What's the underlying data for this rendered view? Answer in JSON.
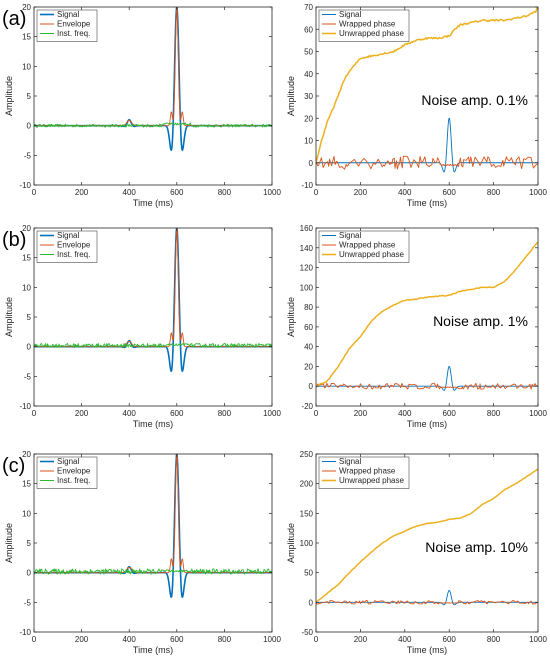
{
  "colors": {
    "signal": "#0072BD",
    "envelope": "#D95319",
    "inst_freq": "#2DB82D",
    "wrapped": "#D95319",
    "unwrapped": "#EDB120",
    "axis": "#262626"
  },
  "chart_data": [
    {
      "id": "a-left",
      "panel_label": "(a)",
      "type": "line",
      "xlabel": "Time (ms)",
      "ylabel": "Amplitude",
      "xlim": [
        0,
        1000
      ],
      "ylim": [
        -10,
        20
      ],
      "xticks": [
        "0",
        "200",
        "400",
        "600",
        "800",
        "1000"
      ],
      "yticks": [
        "-10",
        "-5",
        "0",
        "5",
        "10",
        "15",
        "20"
      ],
      "legend": [
        "Signal",
        "Envelope",
        "Inst. freq."
      ],
      "legend_position": "top-left",
      "series": [
        {
          "name": "Signal",
          "kind": "wavelet",
          "peak_x": 600,
          "peak_y": 20,
          "min_y": -8,
          "small_peak_x": 400,
          "small_peak_y": 1
        },
        {
          "name": "Envelope",
          "kind": "envelope",
          "peak_x": 600,
          "peak_y": 20,
          "side_peaks_y": 2.3
        },
        {
          "name": "Inst. freq.",
          "kind": "noise",
          "baseline_y": 0,
          "spread": 0.5
        }
      ]
    },
    {
      "id": "a-right",
      "type": "line",
      "xlabel": "Time (ms)",
      "ylabel": "Amplitude",
      "xlim": [
        0,
        1000
      ],
      "ylim": [
        -10,
        70
      ],
      "xticks": [
        "0",
        "200",
        "400",
        "600",
        "800",
        "1000"
      ],
      "yticks": [
        "-10",
        "0",
        "10",
        "20",
        "30",
        "40",
        "50",
        "60",
        "70"
      ],
      "legend": [
        "Signal",
        "Wrapped phase",
        "Unwrapped phase"
      ],
      "legend_position": "top-left",
      "annotation": "Noise amp. 0.1%",
      "series": [
        {
          "name": "Signal",
          "kind": "wavelet",
          "peak_x": 600,
          "peak_y": 20,
          "min_y": -8
        },
        {
          "name": "Wrapped phase",
          "kind": "wrapped",
          "amplitude": 3.14
        },
        {
          "name": "Unwrapped phase",
          "kind": "unwrapped",
          "x": [
            0,
            25,
            50,
            75,
            100,
            125,
            150,
            175,
            200,
            250,
            300,
            350,
            400,
            450,
            500,
            550,
            600,
            625,
            650,
            700,
            750,
            800,
            850,
            900,
            950,
            990,
            1000
          ],
          "y": [
            0,
            10,
            18,
            24,
            30,
            37,
            41,
            44,
            47,
            48,
            49,
            50,
            53,
            55,
            56,
            56,
            57,
            60,
            62,
            63,
            64,
            64,
            64,
            65,
            66,
            68,
            70
          ]
        }
      ]
    },
    {
      "id": "b-left",
      "panel_label": "(b)",
      "type": "line",
      "xlabel": "Time (ms)",
      "ylabel": "Amplitude",
      "xlim": [
        0,
        1000
      ],
      "ylim": [
        -10,
        20
      ],
      "xticks": [
        "0",
        "200",
        "400",
        "600",
        "800",
        "1000"
      ],
      "yticks": [
        "-10",
        "-5",
        "0",
        "5",
        "10",
        "15",
        "20"
      ],
      "legend": [
        "Signal",
        "Envelope",
        "Inst. freq."
      ],
      "legend_position": "top-left",
      "series": [
        {
          "name": "Signal",
          "kind": "wavelet",
          "peak_x": 600,
          "peak_y": 20,
          "min_y": -8,
          "small_peak_x": 400,
          "small_peak_y": 1
        },
        {
          "name": "Envelope",
          "kind": "envelope",
          "peak_x": 600,
          "peak_y": 20,
          "side_peaks_y": 2.3
        },
        {
          "name": "Inst. freq.",
          "kind": "noise",
          "baseline_y": 0.2,
          "spread": 0.7
        }
      ]
    },
    {
      "id": "b-right",
      "type": "line",
      "xlabel": "Time (ms)",
      "ylabel": "Amplitude",
      "xlim": [
        0,
        1000
      ],
      "ylim": [
        -20,
        160
      ],
      "xticks": [
        "0",
        "200",
        "400",
        "600",
        "800",
        "1000"
      ],
      "yticks": [
        "-20",
        "0",
        "20",
        "40",
        "60",
        "80",
        "100",
        "120",
        "140",
        "160"
      ],
      "legend": [
        "Signal",
        "Wrapped phase",
        "Unwrapped phase"
      ],
      "legend_position": "top-left",
      "annotation": "Noise amp. 1%",
      "series": [
        {
          "name": "Signal",
          "kind": "wavelet",
          "peak_x": 600,
          "peak_y": 20,
          "min_y": -8
        },
        {
          "name": "Wrapped phase",
          "kind": "wrapped",
          "amplitude": 3.14
        },
        {
          "name": "Unwrapped phase",
          "kind": "unwrapped",
          "x": [
            0,
            50,
            100,
            150,
            200,
            250,
            300,
            350,
            400,
            450,
            500,
            550,
            600,
            650,
            700,
            750,
            800,
            850,
            900,
            950,
            1000
          ],
          "y": [
            0,
            5,
            20,
            38,
            50,
            66,
            76,
            82,
            87,
            88,
            90,
            91,
            92,
            96,
            98,
            100,
            100,
            106,
            118,
            132,
            146
          ]
        }
      ]
    },
    {
      "id": "c-left",
      "panel_label": "(c)",
      "type": "line",
      "xlabel": "Time (ms)",
      "ylabel": "Amplitude",
      "xlim": [
        0,
        1000
      ],
      "ylim": [
        -10,
        20
      ],
      "xticks": [
        "0",
        "200",
        "400",
        "600",
        "800",
        "1000"
      ],
      "yticks": [
        "-10",
        "-5",
        "0",
        "5",
        "10",
        "15",
        "20"
      ],
      "legend": [
        "Signal",
        "Envelope",
        "Inst. freq."
      ],
      "legend_position": "top-left",
      "series": [
        {
          "name": "Signal",
          "kind": "wavelet",
          "peak_x": 600,
          "peak_y": 20,
          "min_y": -8,
          "small_peak_x": 400,
          "small_peak_y": 1
        },
        {
          "name": "Envelope",
          "kind": "envelope",
          "peak_x": 600,
          "peak_y": 20,
          "side_peaks_y": 2.3
        },
        {
          "name": "Inst. freq.",
          "kind": "noise",
          "baseline_y": 0.2,
          "spread": 0.9
        }
      ]
    },
    {
      "id": "c-right",
      "type": "line",
      "xlabel": "Time (ms)",
      "ylabel": "Amplitude",
      "xlim": [
        0,
        1000
      ],
      "ylim": [
        -50,
        250
      ],
      "xticks": [
        "0",
        "200",
        "400",
        "600",
        "800",
        "1000"
      ],
      "yticks": [
        "-50",
        "0",
        "50",
        "100",
        "150",
        "200",
        "250"
      ],
      "legend": [
        "Signal",
        "Wrapped phase",
        "Unwrapped phase"
      ],
      "legend_position": "top-left",
      "annotation": "Noise amp. 10%",
      "series": [
        {
          "name": "Signal",
          "kind": "wavelet",
          "peak_x": 600,
          "peak_y": 20,
          "min_y": -8
        },
        {
          "name": "Wrapped phase",
          "kind": "wrapped",
          "amplitude": 3.14
        },
        {
          "name": "Unwrapped phase",
          "kind": "unwrapped",
          "x": [
            0,
            50,
            100,
            150,
            200,
            250,
            300,
            350,
            400,
            450,
            500,
            550,
            600,
            650,
            700,
            750,
            800,
            850,
            900,
            950,
            1000
          ],
          "y": [
            0,
            15,
            30,
            50,
            68,
            85,
            100,
            112,
            120,
            128,
            133,
            135,
            140,
            142,
            150,
            165,
            175,
            190,
            200,
            212,
            225
          ]
        }
      ]
    }
  ]
}
